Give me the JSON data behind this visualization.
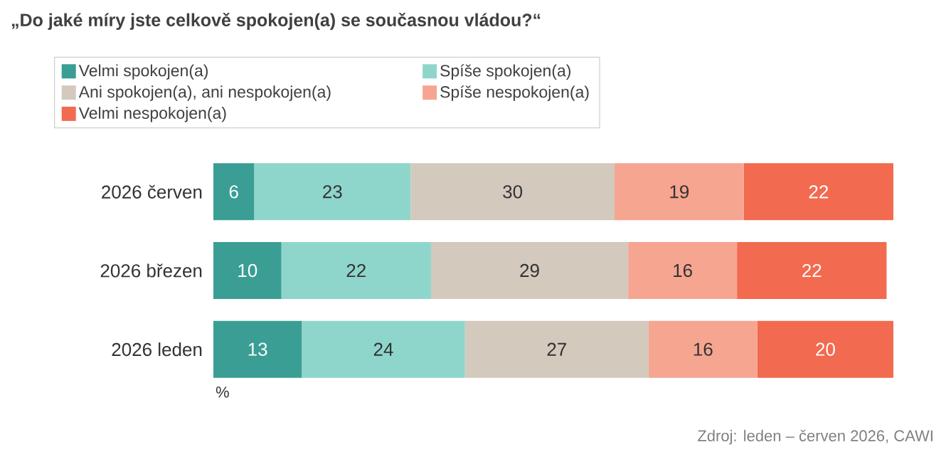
{
  "chart_data": {
    "type": "bar",
    "orientation": "horizontal",
    "stacked": true,
    "data_labels": true,
    "legend": "top",
    "grid": false,
    "title": "„Do jaké míry jste celkově spokojen(a) se současnou vládou?“",
    "categories": [
      "2026 červen",
      "2026 březen",
      "2026 leden"
    ],
    "series": [
      {
        "name": "Velmi spokojen(a)",
        "color": "#3a9e94",
        "values": [
          6,
          10,
          13
        ]
      },
      {
        "name": "Spíše spokojen(a)",
        "color": "#8ed6cb",
        "values": [
          23,
          22,
          24
        ]
      },
      {
        "name": "Ani spokojen(a), ani nespokojen(a)",
        "color": "#d3c9bd",
        "values": [
          30,
          29,
          27
        ]
      },
      {
        "name": "Spíše nespokojen(a)",
        "color": "#f6a590",
        "values": [
          19,
          16,
          16
        ]
      },
      {
        "name": "Velmi nespokojen(a)",
        "color": "#f26a4f",
        "values": [
          22,
          22,
          20
        ]
      }
    ],
    "annotations": [
      "%",
      "Zdroj: leden – červen 2026, CAWI"
    ]
  }
}
